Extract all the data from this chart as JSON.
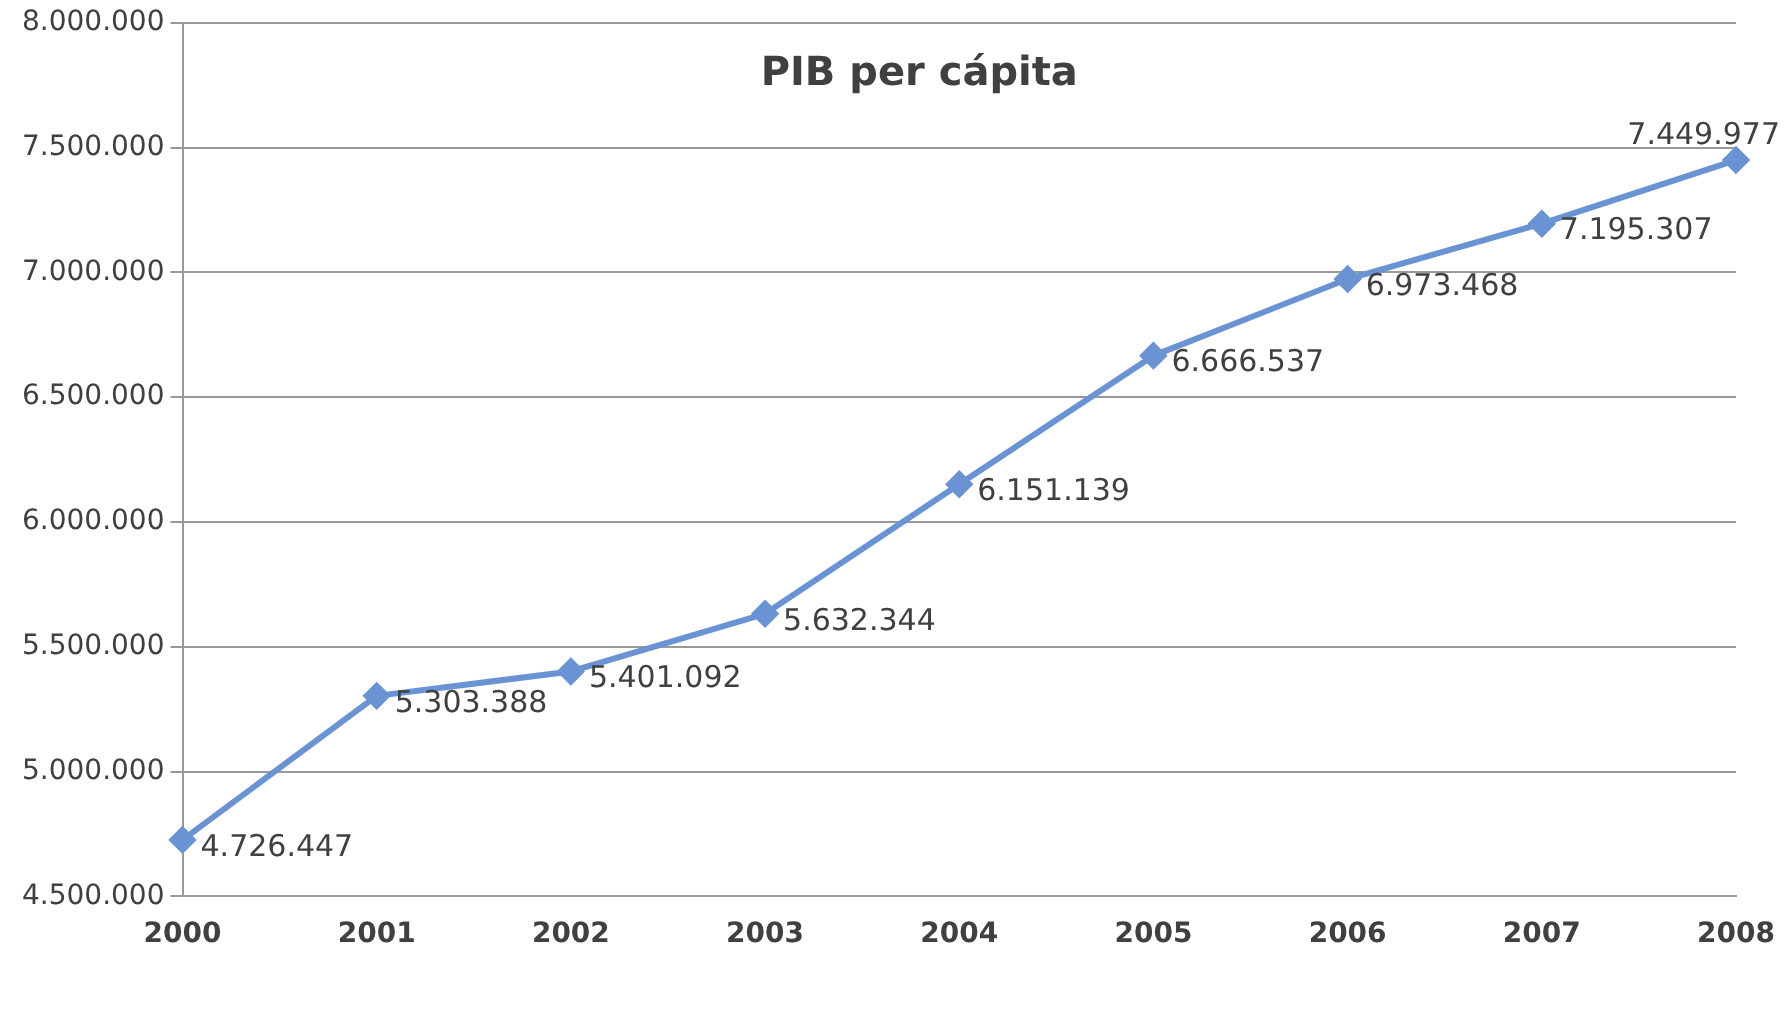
{
  "chart_data": {
    "type": "line",
    "title": "PIB per cápita",
    "categories": [
      "2000",
      "2001",
      "2002",
      "2003",
      "2004",
      "2005",
      "2006",
      "2007",
      "2008"
    ],
    "series": [
      {
        "color": "#6a93d4",
        "values": [
          4726447,
          5303388,
          5401092,
          5632344,
          6151139,
          6666537,
          6973468,
          7195307,
          7449977
        ],
        "value_labels": [
          "4.726.447",
          "5.303.388",
          "5.401.092",
          "5.632.344",
          "6.151.139",
          "6.666.537",
          "6.973.468",
          "7.195.307",
          "7.449.977"
        ]
      }
    ],
    "ylim": [
      4500000,
      8000000
    ],
    "yticks": [
      {
        "value": 4500000,
        "label": "4.500.000"
      },
      {
        "value": 5000000,
        "label": "5.000.000"
      },
      {
        "value": 5500000,
        "label": "5.500.000"
      },
      {
        "value": 6000000,
        "label": "6.000.000"
      },
      {
        "value": 6500000,
        "label": "6.500.000"
      },
      {
        "value": 7000000,
        "label": "7.000.000"
      },
      {
        "value": 7500000,
        "label": "7.500.000"
      },
      {
        "value": 8000000,
        "label": "8.000.000"
      }
    ],
    "grid": "y",
    "legend": false,
    "marker": "diamond",
    "line_style": "solid"
  }
}
